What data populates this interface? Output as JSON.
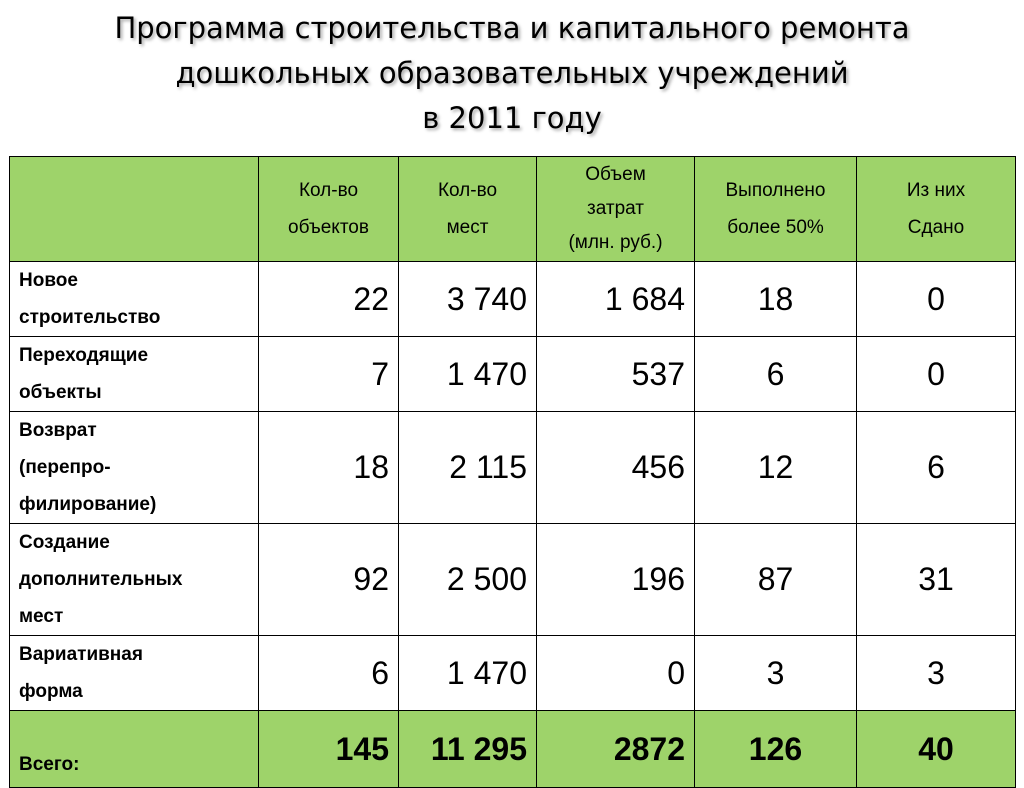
{
  "title": {
    "line1": "Программа строительства и капитального ремонта",
    "line2": "дошкольных образовательных учреждений",
    "line3": "в 2011 году"
  },
  "table": {
    "headers": [
      "",
      "Кол-во объектов",
      "Кол-во мест",
      "Объем затрат (млн. руб.)",
      "Выполнено более 50%",
      "Из них Сдано"
    ],
    "header_lines": {
      "objects": [
        "Кол-во",
        "объектов"
      ],
      "places": [
        "Кол-во",
        "мест"
      ],
      "costs": [
        "Объем",
        "затрат",
        "(млн. руб.)"
      ],
      "done": [
        "Выполнено",
        "более 50%"
      ],
      "handed": [
        "Из них",
        "Сдано"
      ]
    },
    "rows": [
      {
        "label_lines": [
          "Новое",
          "строительство"
        ],
        "objects": "22",
        "places": "3 740",
        "costs": "1 684",
        "done": "18",
        "handed": "0"
      },
      {
        "label_lines": [
          "Переходящие",
          "объекты"
        ],
        "objects": "7",
        "places": "1 470",
        "costs": "537",
        "done": "6",
        "handed": "0"
      },
      {
        "label_lines": [
          "Возврат",
          "(перепро-",
          "филирование)"
        ],
        "objects": "18",
        "places": "2 115",
        "costs": "456",
        "done": "12",
        "handed": "6"
      },
      {
        "label_lines": [
          "Создание",
          "дополнительных",
          "мест"
        ],
        "objects": "92",
        "places": "2 500",
        "costs": "196",
        "done": "87",
        "handed": "31"
      },
      {
        "label_lines": [
          "Вариативная",
          "форма"
        ],
        "objects": "6",
        "places": "1 470",
        "costs": "0",
        "done": "3",
        "handed": "3"
      }
    ],
    "total": {
      "label": "Всего:",
      "objects": "145",
      "places": "11 295",
      "costs": "2872",
      "done": "126",
      "handed": "40"
    }
  },
  "colors": {
    "header_bg": "#9ed36a",
    "border": "#000000",
    "text": "#000000"
  }
}
